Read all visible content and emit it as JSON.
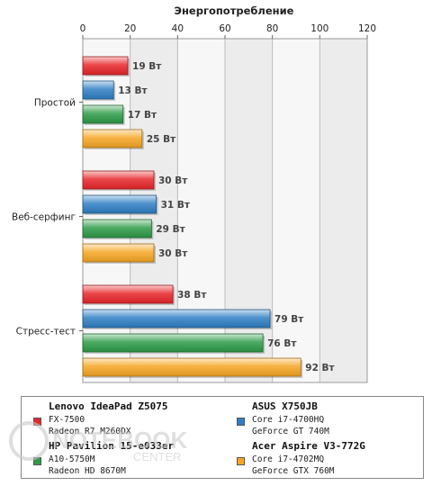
{
  "chart_data": {
    "type": "bar",
    "orientation": "horizontal",
    "title": "Энергопотребление",
    "xlim": [
      0,
      120
    ],
    "xticks": [
      "0",
      "20",
      "40",
      "60",
      "80",
      "100",
      "120"
    ],
    "categories": [
      "Простой",
      "Веб-серфинг",
      "Стресс-тест"
    ],
    "series": [
      {
        "values": [
          19,
          30,
          38
        ],
        "labels": [
          "19 Вт",
          "30 Вт",
          "38 Вт"
        ],
        "color": "#e8262a"
      },
      {
        "values": [
          13,
          31,
          79
        ],
        "labels": [
          "13 Вт",
          "31 Вт",
          "79 Вт"
        ],
        "color": "#2f7fc4"
      },
      {
        "values": [
          17,
          29,
          76
        ],
        "labels": [
          "17 Вт",
          "29 Вт",
          "76 Вт"
        ],
        "color": "#2e9b47"
      },
      {
        "values": [
          25,
          30,
          92
        ],
        "labels": [
          "25 Вт",
          "30 Вт",
          "92 Вт"
        ],
        "color": "#f5a623"
      }
    ],
    "grid": true,
    "alternating_bands": true
  },
  "legend": {
    "items": [
      {
        "title": "Lenovo IdeaPad Z5075",
        "line1": "FX-7500",
        "line2": "Radeon R7 M260DX",
        "color": "#e8262a"
      },
      {
        "title": "ASUS X750JB",
        "line1": "Core i7-4700HQ",
        "line2": "GeForce GT 740M",
        "color": "#2f7fc4"
      },
      {
        "title": "HP Pavilion 15-e033er",
        "line1": "A10-5750M",
        "line2": "Radeon HD 8670M",
        "color": "#2e9b47"
      },
      {
        "title": "Acer Aspire V3-772G",
        "line1": "Core i7-4702MQ",
        "line2": "GeForce GTX 760M",
        "color": "#f5a623"
      }
    ]
  },
  "watermark": {
    "line1": "NOTEBOOK",
    "line2": "CENTER"
  }
}
